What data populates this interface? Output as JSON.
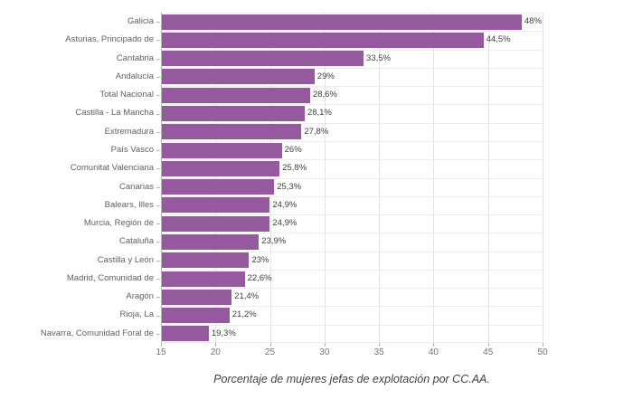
{
  "chart_data": {
    "type": "bar",
    "orientation": "horizontal",
    "title": "Porcentaje de mujeres jefas de explotación por CC.AA.",
    "categories": [
      "Galicia",
      "Asturias, Principado de",
      "Cantabria",
      "Andalucía",
      "Total Nacional",
      "Castilla - La Mancha",
      "Extremadura",
      "País Vasco",
      "Comunitat Valenciana",
      "Canarias",
      "Balears, Illes",
      "Murcia, Región de",
      "Cataluña",
      "Castilla y León",
      "Madrid, Comunidad de",
      "Aragón",
      "Rioja, La",
      "Navarra, Comunidad Foral de"
    ],
    "values": [
      48,
      44.5,
      33.5,
      29,
      28.6,
      28.1,
      27.8,
      26,
      25.8,
      25.3,
      24.9,
      24.9,
      23.9,
      23,
      22.6,
      21.4,
      21.2,
      19.3
    ],
    "value_labels": [
      "48%",
      "44,5%",
      "33,5%",
      "29%",
      "28,6%",
      "28,1%",
      "27,8%",
      "26%",
      "25,8%",
      "25,3%",
      "24,9%",
      "24,9%",
      "23,9%",
      "23%",
      "22,6%",
      "21,4%",
      "21,2%",
      "19,3%"
    ],
    "xlabel": "",
    "ylabel": "",
    "xlim": [
      15,
      50
    ],
    "xticks": [
      15,
      20,
      25,
      30,
      35,
      40,
      45,
      50
    ],
    "grid": true,
    "legend": "none",
    "colors": {
      "bar": "#955a9e",
      "axis_line": "#b3b3b3",
      "grid_vertical": "#e4e4e4",
      "grid_horizontal": "#ededed",
      "category_label": "#5f5f5f",
      "value_label": "#3d3d3d",
      "tick_label": "#757575",
      "caption": "#404040"
    }
  }
}
